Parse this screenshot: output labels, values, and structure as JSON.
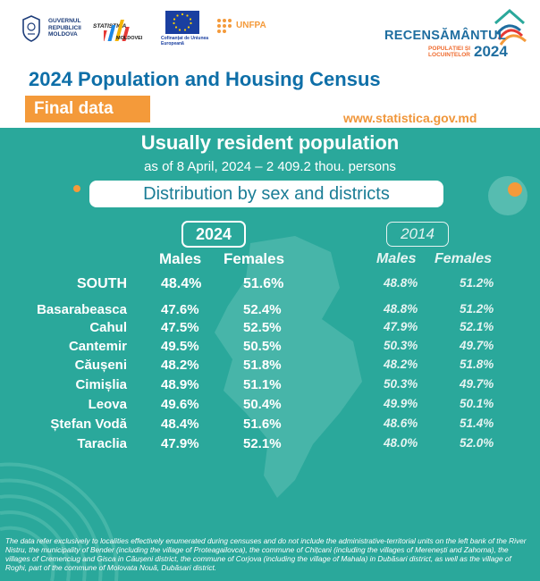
{
  "header": {
    "gov_logo_text": [
      "GUVERNUL",
      "REPUBLICII",
      "MOLDOVA"
    ],
    "stat_logo_text": "STATISTICA",
    "stat_logo_sub": "MOLDOVEI",
    "eu_caption": "Cofinanțat de Uniunea Europeană",
    "unfpa_text": "UNFPA",
    "census_word": "RECENSĂMÂNTUL",
    "census_sub": "POPULAȚIEI ȘI LOCUINȚELOR",
    "census_year": "2024"
  },
  "title": "2024 Population and Housing Census",
  "badge": "Final data",
  "website": "www.statistica.gov.md",
  "subtitle": "Usually resident population",
  "subline": "as of 8 April, 2024 – 2 409.2 thou. persons",
  "distribution": "Distribution by sex and districts",
  "table": {
    "year_current": "2024",
    "year_previous": "2014",
    "col_males": "Males",
    "col_females": "Females",
    "rows": [
      {
        "name": "SOUTH",
        "m24": "48.4%",
        "f24": "51.6%",
        "m14": "48.8%",
        "f14": "51.2%"
      },
      {
        "name": "Basarabeasca",
        "m24": "47.6%",
        "f24": "52.4%",
        "m14": "48.8%",
        "f14": "51.2%"
      },
      {
        "name": "Cahul",
        "m24": "47.5%",
        "f24": "52.5%",
        "m14": "47.9%",
        "f14": "52.1%"
      },
      {
        "name": "Cantemir",
        "m24": "49.5%",
        "f24": "50.5%",
        "m14": "50.3%",
        "f14": "49.7%"
      },
      {
        "name": "Căușeni",
        "m24": "48.2%",
        "f24": "51.8%",
        "m14": "48.2%",
        "f14": "51.8%"
      },
      {
        "name": "Cimișlia",
        "m24": "48.9%",
        "f24": "51.1%",
        "m14": "50.3%",
        "f14": "49.7%"
      },
      {
        "name": "Leova",
        "m24": "49.6%",
        "f24": "50.4%",
        "m14": "49.9%",
        "f14": "50.1%"
      },
      {
        "name": "Ștefan Vodă",
        "m24": "48.4%",
        "f24": "51.6%",
        "m14": "48.6%",
        "f14": "51.4%"
      },
      {
        "name": "Taraclia",
        "m24": "47.9%",
        "f24": "52.1%",
        "m14": "48.0%",
        "f14": "52.0%"
      }
    ]
  },
  "footnote": "The data refer exclusively to localities effectively enumerated during censuses and do not include the administrative-territorial units on the left bank of the River Nistru, the municipality of Bender (including the village of Proteagailovca), the commune of Chițcani (including the villages of Merenești and Zahorna), the villages of Cremenciug and Gisca in Căușeni district, the commune of Corjova (including the village of Mahala) in Dubăsari district, as well as the village of Roghi, part of the commune of Molovata Nouă, Dubăsari district.",
  "colors": {
    "teal_background": "#2aa89b",
    "title_blue": "#0e6fa8",
    "accent_orange": "#f49a3a"
  }
}
